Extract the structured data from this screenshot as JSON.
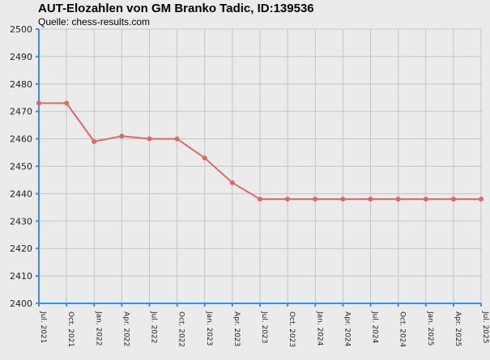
{
  "header": {
    "title": "AUT-Elozahlen von GM Branko Tadic, ID:139536",
    "subtitle": "Quelle: chess-results.com"
  },
  "chart_data": {
    "type": "line",
    "title": "AUT-Elozahlen von GM Branko Tadic, ID:139536",
    "subtitle": "Quelle: chess-results.com",
    "xlabel": "",
    "ylabel": "",
    "ylim": [
      2400,
      2500
    ],
    "yticks": [
      2400,
      2410,
      2420,
      2430,
      2440,
      2450,
      2460,
      2470,
      2480,
      2490,
      2500
    ],
    "categories": [
      "Jul. 2021",
      "Oct. 2021",
      "Jan. 2022",
      "Apr. 2022",
      "Jul. 2022",
      "Oct. 2022",
      "Jan. 2023",
      "Apr. 2023",
      "Jul. 2023",
      "Oct. 2023",
      "Jan. 2024",
      "Apr. 2024",
      "Jul. 2024",
      "Oct. 2024",
      "Jan. 2025",
      "Apr. 2025",
      "Jul. 2025"
    ],
    "series": [
      {
        "values": [
          2473,
          2473,
          2459,
          2461,
          2460,
          2460,
          2453,
          2444,
          2438,
          2438,
          2438,
          2438,
          2438,
          2438,
          2438,
          2438,
          2438
        ]
      }
    ],
    "grid": true,
    "colors": {
      "line": "#d96a6a",
      "axis": "#3a8fe8",
      "grid": "#c4c4c4",
      "background": "#ebebeb"
    }
  }
}
